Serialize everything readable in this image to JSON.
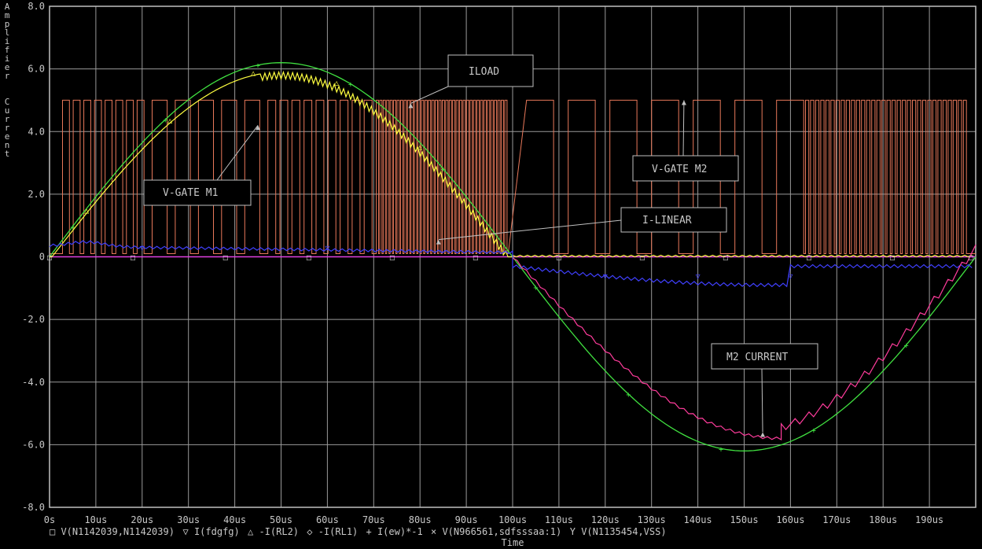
{
  "chart_data": {
    "type": "line",
    "ylabel": "Amplifier Current",
    "xlabel": "Time",
    "xlim": [
      0,
      200
    ],
    "ylim": [
      -8,
      8
    ],
    "x_ticks": [
      0,
      10,
      20,
      30,
      40,
      50,
      60,
      70,
      80,
      90,
      100,
      110,
      120,
      130,
      140,
      150,
      160,
      170,
      180,
      190
    ],
    "x_tick_labels": [
      "0s",
      "10us",
      "20us",
      "30us",
      "40us",
      "50us",
      "60us",
      "70us",
      "80us",
      "90us",
      "100us",
      "110us",
      "120us",
      "130us",
      "140us",
      "150us",
      "160us",
      "170us",
      "180us",
      "190us"
    ],
    "y_ticks": [
      8,
      6,
      4,
      2,
      0,
      -2,
      -4,
      -6,
      -8
    ],
    "y_tick_labels": [
      "8.0",
      "6.0",
      "4.0",
      "2.0",
      "0",
      "-2.0",
      "-4.0",
      "-6.0",
      "-8.0"
    ],
    "grid": true,
    "legend_position": "bottom",
    "colors": {
      "background": "#000000",
      "axis": "#c0c0c0",
      "grid": "#9a9a9a",
      "text": "#c8c8c8",
      "annotation_box": "#c0c0c0",
      "pwm": "#e8785a",
      "iload": "#ffff40",
      "linear": "#4040ff",
      "sine": "#40e040",
      "m2": "#ff3c9c",
      "zero": "#e040e0"
    },
    "series": [
      {
        "name": "V(N1142039,N1142039)",
        "marker": "□",
        "color": "#c8c8c8",
        "x": [
          0,
          50,
          100,
          150,
          200
        ],
        "y": [
          0,
          0,
          0,
          0,
          0
        ]
      },
      {
        "name": "I(fdgfg)",
        "marker": "▽",
        "color": "#4040ff",
        "x": [
          0,
          5,
          10,
          20,
          30,
          40,
          50,
          60,
          70,
          80,
          90,
          100,
          110,
          120,
          130,
          140,
          150,
          160,
          170,
          180,
          190,
          200
        ],
        "y": [
          0.1,
          0.4,
          0.35,
          0.3,
          0.3,
          0.28,
          0.27,
          0.2,
          0.15,
          0.12,
          0.1,
          -0.1,
          -0.4,
          -0.5,
          -0.6,
          -0.8,
          -0.85,
          -0.4,
          -0.25,
          -0.2,
          -0.15,
          -0.2
        ]
      },
      {
        "name": "-I(RL2)",
        "marker": "△",
        "color": "#ffff40",
        "x": [
          0,
          5,
          10,
          20,
          30,
          40,
          45,
          50,
          55,
          60,
          65,
          70,
          75,
          80,
          85,
          90,
          95,
          100,
          110,
          150,
          200
        ],
        "y": [
          0,
          0.8,
          1.8,
          3.3,
          4.6,
          5.5,
          5.8,
          5.9,
          6.0,
          5.6,
          5.1,
          4.6,
          4.0,
          3.3,
          2.5,
          1.6,
          0.8,
          0,
          0,
          0,
          0
        ]
      },
      {
        "name": "-I(RL1)",
        "marker": "◇",
        "color": "#e040e0",
        "x": [
          0,
          50,
          100,
          150,
          200
        ],
        "y": [
          0,
          0,
          0,
          0,
          0
        ]
      },
      {
        "name": "I(ew)*-1",
        "marker": "+",
        "color": "#40e040",
        "x": [
          0,
          10,
          20,
          30,
          40,
          50,
          60,
          70,
          80,
          90,
          100,
          110,
          120,
          130,
          140,
          150,
          160,
          170,
          180,
          190,
          200
        ],
        "y": [
          0,
          1.92,
          3.65,
          5.02,
          5.9,
          6.2,
          5.9,
          5.02,
          3.65,
          1.92,
          0,
          -1.92,
          -3.65,
          -5.02,
          -5.9,
          -6.2,
          -5.9,
          -5.02,
          -3.65,
          -1.92,
          0
        ]
      },
      {
        "name": "V(N966561,sdfsssaa:1)",
        "marker": "×",
        "color": "#e8785a",
        "x": [
          0,
          4,
          8,
          12,
          16,
          20,
          30,
          40,
          46,
          50,
          60,
          70,
          80,
          90,
          100,
          110,
          115,
          120,
          130,
          140,
          150,
          160,
          170,
          180,
          190,
          198
        ],
        "y": [
          0,
          5,
          5,
          5,
          5,
          5,
          5,
          5,
          5,
          5,
          5,
          5,
          5,
          5,
          0,
          5,
          5,
          5,
          5,
          5,
          5,
          5,
          5,
          5,
          5,
          5
        ]
      },
      {
        "name": "V(N1135454,VSS)",
        "marker": "Y",
        "color": "#ff3c9c",
        "x": [
          100,
          105,
          110,
          115,
          120,
          130,
          140,
          150,
          155,
          160,
          165,
          170,
          180,
          190,
          200
        ],
        "y": [
          0,
          -0.5,
          -1.5,
          -2.5,
          -3.4,
          -4.6,
          -5.2,
          -5.6,
          -5.8,
          -5.6,
          -5.2,
          -4.6,
          -3.4,
          -1.9,
          -0.3
        ]
      }
    ],
    "annotations": [
      {
        "label": "ILOAD",
        "target_x": 78,
        "target_y": 4.9
      },
      {
        "label": "V-GATE M1",
        "target_x": 45,
        "target_y": 4.2
      },
      {
        "label": "V-GATE M2",
        "target_x": 137,
        "target_y": 5.0
      },
      {
        "label": "I-LINEAR",
        "target_x": 84,
        "target_y": 0.55
      },
      {
        "label": "M2 CURRENT",
        "target_x": 154,
        "target_y": -5.6
      }
    ]
  }
}
